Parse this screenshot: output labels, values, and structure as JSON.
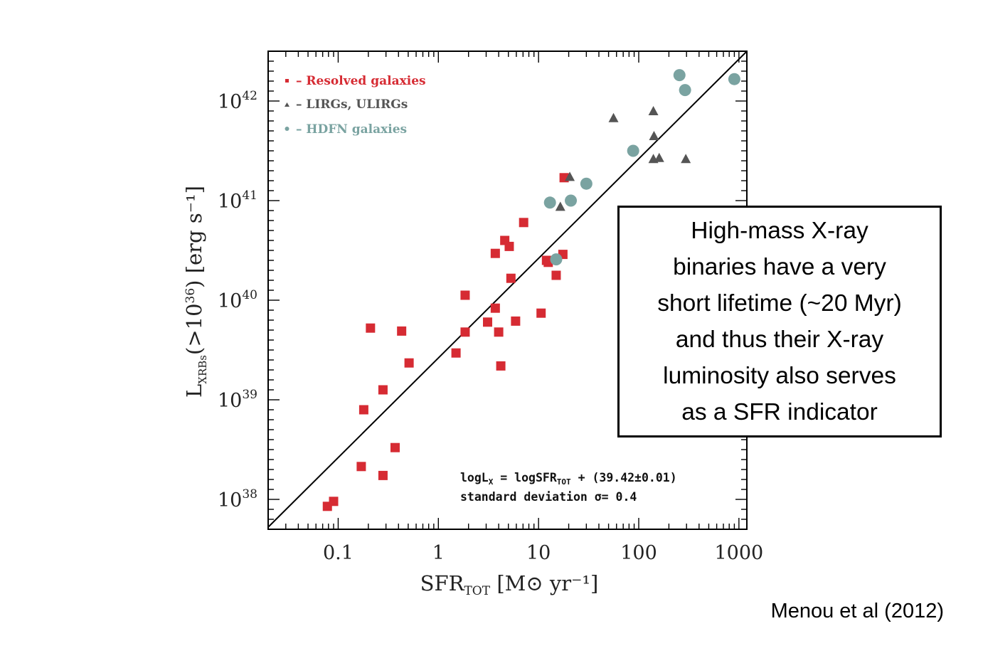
{
  "chart_data": {
    "type": "scatter",
    "x_axis": {
      "label_main": "SFR",
      "label_sub": "TOT",
      "label_units": "[M⊙ yr⁻¹]",
      "scale": "log",
      "range": [
        0.02,
        1200
      ],
      "ticks": [
        {
          "value": 0.1,
          "label": "0.1"
        },
        {
          "value": 1,
          "label": "1"
        },
        {
          "value": 10,
          "label": "10"
        },
        {
          "value": 100,
          "label": "100"
        },
        {
          "value": 1000,
          "label": "1000"
        }
      ]
    },
    "y_axis": {
      "label_main": "L",
      "label_sub": "XRBs",
      "label_paren": "(>10",
      "label_paren_exp": "36",
      "label_paren_close": ")",
      "label_units": "[erg s⁻¹]",
      "scale": "log",
      "range": [
        37.7,
        42.5
      ],
      "ticks": [
        {
          "value": 38,
          "base": "10",
          "exp": "38"
        },
        {
          "value": 39,
          "base": "10",
          "exp": "39"
        },
        {
          "value": 40,
          "base": "10",
          "exp": "40"
        },
        {
          "value": 41,
          "base": "10",
          "exp": "41"
        },
        {
          "value": 42,
          "base": "10",
          "exp": "42"
        }
      ]
    },
    "series": [
      {
        "name": "Resolved galaxies",
        "legend_label": "– Resolved galaxies",
        "marker": "square",
        "color": "#d62b33",
        "points": [
          [
            0.078,
            37.93
          ],
          [
            0.09,
            37.98
          ],
          [
            0.17,
            38.33
          ],
          [
            0.28,
            38.24
          ],
          [
            0.37,
            38.52
          ],
          [
            0.18,
            38.9
          ],
          [
            0.28,
            39.1
          ],
          [
            0.21,
            39.72
          ],
          [
            0.43,
            39.69
          ],
          [
            0.51,
            39.37
          ],
          [
            1.5,
            39.47
          ],
          [
            1.85,
            39.68
          ],
          [
            1.85,
            40.05
          ],
          [
            3.1,
            39.78
          ],
          [
            3.7,
            39.92
          ],
          [
            4,
            39.68
          ],
          [
            4.2,
            39.34
          ],
          [
            5.9,
            39.79
          ],
          [
            3.7,
            40.47
          ],
          [
            4.6,
            40.6
          ],
          [
            5.1,
            40.54
          ],
          [
            5.3,
            40.22
          ],
          [
            7.1,
            40.78
          ],
          [
            10.6,
            39.87
          ],
          [
            12,
            40.4
          ],
          [
            12.5,
            40.38
          ],
          [
            15,
            40.25
          ],
          [
            17.5,
            40.46
          ],
          [
            18,
            41.23
          ]
        ]
      },
      {
        "name": "LIRGs, ULIRGs",
        "legend_label": "– LIRGs, ULIRGs",
        "marker": "triangle",
        "color": "#555555",
        "points": [
          [
            16.5,
            40.94
          ],
          [
            20.5,
            41.24
          ],
          [
            56,
            41.83
          ],
          [
            140,
            41.9
          ],
          [
            142,
            41.65
          ],
          [
            140,
            41.42
          ],
          [
            160,
            41.43
          ],
          [
            295,
            41.42
          ]
        ]
      },
      {
        "name": "HDFN galaxies",
        "legend_label": "– HDFN galaxies",
        "marker": "circle",
        "color": "#7aa3a1",
        "points": [
          [
            13,
            40.98
          ],
          [
            15,
            40.41
          ],
          [
            21,
            41.0
          ],
          [
            30,
            41.17
          ],
          [
            88,
            41.5
          ],
          [
            255,
            42.26
          ],
          [
            290,
            42.11
          ],
          [
            900,
            42.22
          ]
        ]
      }
    ],
    "fit_line": {
      "equation": "logL_X = logSFR_TOT + (39.42±0.01)",
      "slope": 1,
      "intercept": 39.42
    },
    "annotation_lines": {
      "line1_pre": "logL",
      "line1_sub1": "X",
      "line1_mid": " = logSFR",
      "line1_sub2": "TOT",
      "line1_post": " + (39.42±0.01)",
      "line2": "standard deviation σ= 0.4"
    },
    "legend_position": "top-left"
  },
  "callout": {
    "line1": "High-mass X-ray",
    "line2": "binaries have a very",
    "line3": "short lifetime (~20 Myr)",
    "line4": "and thus their X-ray",
    "line5": "luminosity also serves",
    "line6": "as a SFR indicator"
  },
  "credit": "Menou et al (2012)"
}
